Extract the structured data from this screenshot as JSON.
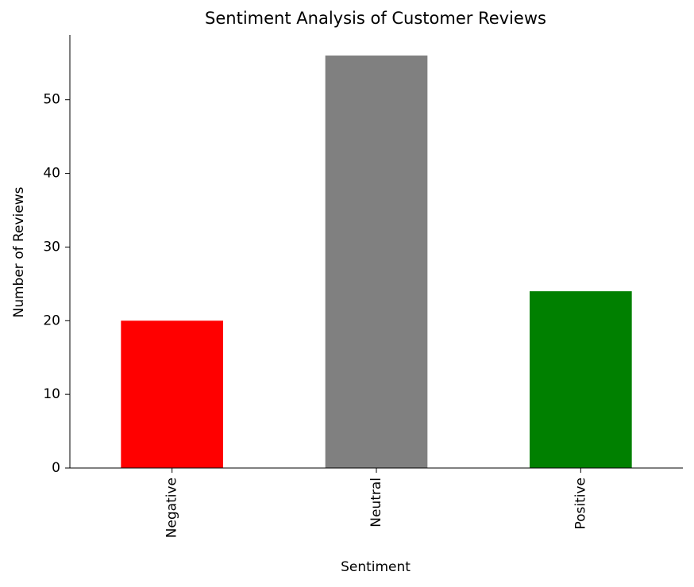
{
  "chart_data": {
    "type": "bar",
    "title": "Sentiment Analysis of Customer Reviews",
    "xlabel": "Sentiment",
    "ylabel": "Number of Reviews",
    "categories": [
      "Negative",
      "Neutral",
      "Positive"
    ],
    "values": [
      20,
      56,
      24
    ],
    "colors": [
      "#ff0000",
      "#808080",
      "#008000"
    ],
    "ylim": [
      0,
      58.8
    ],
    "yticks": [
      0,
      10,
      20,
      30,
      40,
      50
    ],
    "grid": false
  }
}
